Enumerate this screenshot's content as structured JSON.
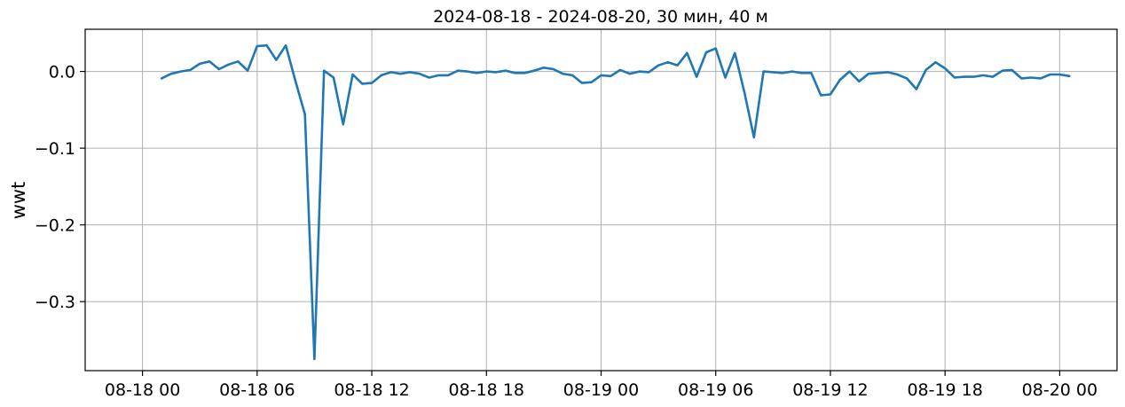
{
  "chart_data": {
    "type": "line",
    "title": "2024-08-18 - 2024-08-20, 30 мин, 40 м",
    "xlabel": "",
    "ylabel": "wwt",
    "grid": true,
    "xlim": [
      "2024-08-17 21:00",
      "2024-08-20 03:00"
    ],
    "ylim": [
      -0.39,
      0.055
    ],
    "x_ticks": [
      {
        "value": "2024-08-18 00:00",
        "label": "08-18 00"
      },
      {
        "value": "2024-08-18 06:00",
        "label": "08-18 06"
      },
      {
        "value": "2024-08-18 12:00",
        "label": "08-18 12"
      },
      {
        "value": "2024-08-18 18:00",
        "label": "08-18 18"
      },
      {
        "value": "2024-08-19 00:00",
        "label": "08-19 00"
      },
      {
        "value": "2024-08-19 06:00",
        "label": "08-19 06"
      },
      {
        "value": "2024-08-19 12:00",
        "label": "08-19 12"
      },
      {
        "value": "2024-08-19 18:00",
        "label": "08-19 18"
      },
      {
        "value": "2024-08-20 00:00",
        "label": "08-20 00"
      }
    ],
    "y_ticks": [
      {
        "value": 0.0,
        "label": "0.0"
      },
      {
        "value": -0.1,
        "label": "−0.1"
      },
      {
        "value": -0.2,
        "label": "−0.2"
      },
      {
        "value": -0.3,
        "label": "−0.3"
      }
    ],
    "series": [
      {
        "color": "#1f77b4",
        "x": [
          "2024-08-18 01:00",
          "2024-08-18 01:30",
          "2024-08-18 02:00",
          "2024-08-18 02:30",
          "2024-08-18 03:00",
          "2024-08-18 03:30",
          "2024-08-18 04:00",
          "2024-08-18 04:30",
          "2024-08-18 05:00",
          "2024-08-18 05:30",
          "2024-08-18 06:00",
          "2024-08-18 06:30",
          "2024-08-18 07:00",
          "2024-08-18 07:30",
          "2024-08-18 08:00",
          "2024-08-18 08:30",
          "2024-08-18 09:00",
          "2024-08-18 09:30",
          "2024-08-18 10:00",
          "2024-08-18 10:30",
          "2024-08-18 11:00",
          "2024-08-18 11:30",
          "2024-08-18 12:00",
          "2024-08-18 12:30",
          "2024-08-18 13:00",
          "2024-08-18 13:30",
          "2024-08-18 14:00",
          "2024-08-18 14:30",
          "2024-08-18 15:00",
          "2024-08-18 15:30",
          "2024-08-18 16:00",
          "2024-08-18 16:30",
          "2024-08-18 17:00",
          "2024-08-18 17:30",
          "2024-08-18 18:00",
          "2024-08-18 18:30",
          "2024-08-18 19:00",
          "2024-08-18 19:30",
          "2024-08-18 20:00",
          "2024-08-18 20:30",
          "2024-08-18 21:00",
          "2024-08-18 21:30",
          "2024-08-18 22:00",
          "2024-08-18 22:30",
          "2024-08-18 23:00",
          "2024-08-18 23:30",
          "2024-08-19 00:00",
          "2024-08-19 00:30",
          "2024-08-19 01:00",
          "2024-08-19 01:30",
          "2024-08-19 02:00",
          "2024-08-19 02:30",
          "2024-08-19 03:00",
          "2024-08-19 03:30",
          "2024-08-19 04:00",
          "2024-08-19 04:30",
          "2024-08-19 05:00",
          "2024-08-19 05:30",
          "2024-08-19 06:00",
          "2024-08-19 06:30",
          "2024-08-19 07:00",
          "2024-08-19 07:30",
          "2024-08-19 08:00",
          "2024-08-19 08:30",
          "2024-08-19 09:00",
          "2024-08-19 09:30",
          "2024-08-19 10:00",
          "2024-08-19 10:30",
          "2024-08-19 11:00",
          "2024-08-19 11:30",
          "2024-08-19 12:00",
          "2024-08-19 12:30",
          "2024-08-19 13:00",
          "2024-08-19 13:30",
          "2024-08-19 14:00",
          "2024-08-19 14:30",
          "2024-08-19 15:00",
          "2024-08-19 15:30",
          "2024-08-19 16:00",
          "2024-08-19 16:30",
          "2024-08-19 17:00",
          "2024-08-19 17:30",
          "2024-08-19 18:00",
          "2024-08-19 18:30",
          "2024-08-19 19:00",
          "2024-08-19 19:30",
          "2024-08-19 20:00",
          "2024-08-19 20:30",
          "2024-08-19 21:00",
          "2024-08-19 21:30",
          "2024-08-19 22:00",
          "2024-08-19 22:30",
          "2024-08-19 23:00",
          "2024-08-19 23:30",
          "2024-08-20 00:00",
          "2024-08-20 00:30"
        ],
        "y": [
          -0.009,
          -0.003,
          0.0,
          0.002,
          0.01,
          0.013,
          0.003,
          0.009,
          0.013,
          0.001,
          0.033,
          0.034,
          0.015,
          0.034,
          -0.012,
          -0.056,
          -0.375,
          0.001,
          -0.008,
          -0.069,
          -0.004,
          -0.016,
          -0.015,
          -0.005,
          -0.001,
          -0.003,
          -0.001,
          -0.003,
          -0.008,
          -0.005,
          -0.005,
          0.001,
          0.0,
          -0.002,
          0.0,
          -0.001,
          0.001,
          -0.002,
          -0.002,
          0.001,
          0.005,
          0.003,
          -0.003,
          -0.005,
          -0.015,
          -0.014,
          -0.005,
          -0.006,
          0.002,
          -0.003,
          0.0,
          -0.001,
          0.008,
          0.012,
          0.008,
          0.024,
          -0.007,
          0.025,
          0.03,
          -0.008,
          0.024,
          -0.027,
          -0.086,
          0.0,
          -0.001,
          -0.002,
          0.0,
          -0.002,
          -0.002,
          -0.031,
          -0.03,
          -0.011,
          0.0,
          -0.013,
          -0.003,
          -0.002,
          -0.001,
          -0.004,
          -0.009,
          -0.023,
          0.002,
          0.012,
          0.004,
          -0.008,
          -0.007,
          -0.007,
          -0.005,
          -0.007,
          0.001,
          0.002,
          -0.009,
          -0.008,
          -0.009,
          -0.004,
          -0.004,
          -0.006
        ]
      }
    ]
  }
}
